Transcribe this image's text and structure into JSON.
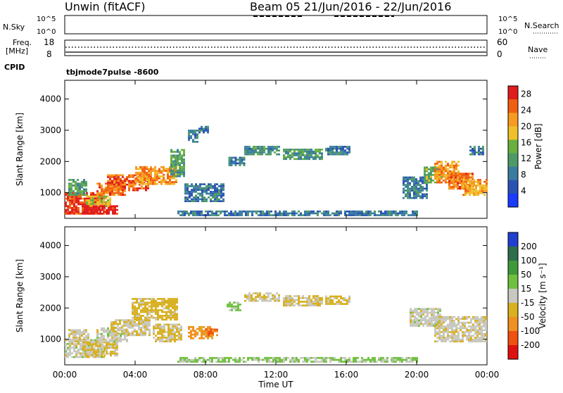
{
  "header": {
    "station": "Unwin (fitACF)",
    "beam_title": "Beam 05  21/Jun/2016 - 22/Jun/2016",
    "cpid_label": "CPID",
    "cpid_value": "tbjmode7pulse -8600"
  },
  "top_panels": {
    "nsky_label": "N.Sky",
    "nsky_ticks": [
      "10^5",
      "10^0"
    ],
    "freq_label_1": "Freq.",
    "freq_label_2": "[MHz]",
    "freq_ticks": [
      "18",
      "8"
    ],
    "nsearch_label": "N.Search",
    "nsearch_ticks": [
      "10^5",
      "10^0"
    ],
    "nave_label": "Nave",
    "nave_ticks": [
      "60",
      "0"
    ]
  },
  "chart_data": [
    {
      "type": "heatmap",
      "title": "",
      "xlabel": "Time UT",
      "ylabel": "Slant Range [km]",
      "x_ticks": [
        "00:00",
        "04:00",
        "08:00",
        "12:00",
        "16:00",
        "20:00",
        "00:00"
      ],
      "y_ticks": [
        1000,
        2000,
        3000,
        4000
      ],
      "ylim": [
        180,
        4600
      ],
      "colorbar_label": "Power [dB]",
      "colorbar_ticks": [
        4,
        8,
        12,
        16,
        20,
        24,
        28
      ],
      "colorbar_range": [
        0,
        30
      ],
      "colormap": [
        "#1a3cff",
        "#2a52b4",
        "#3a7ca0",
        "#4d9a68",
        "#6ab040",
        "#f0c02a",
        "#f79a20",
        "#f06010",
        "#e01c1c"
      ],
      "regions": [
        {
          "t": [
            0.0,
            2.2
          ],
          "r": [
            300,
            1000
          ],
          "v": 27
        },
        {
          "t": [
            0.2,
            1.2
          ],
          "r": [
            900,
            1400
          ],
          "v": 12
        },
        {
          "t": [
            1.0,
            3.0
          ],
          "r": [
            300,
            600
          ],
          "v": 29
        },
        {
          "t": [
            1.2,
            2.6
          ],
          "r": [
            550,
            900
          ],
          "v": 18
        },
        {
          "t": [
            1.8,
            3.4
          ],
          "r": [
            900,
            1300
          ],
          "v": 24
        },
        {
          "t": [
            2.4,
            4.8
          ],
          "r": [
            1050,
            1550
          ],
          "v": 25
        },
        {
          "t": [
            4.0,
            6.4
          ],
          "r": [
            1250,
            1850
          ],
          "v": 22
        },
        {
          "t": [
            6.0,
            6.8
          ],
          "r": [
            1500,
            2400
          ],
          "v": 12
        },
        {
          "t": [
            7.0,
            7.6
          ],
          "r": [
            2600,
            3000
          ],
          "v": 9
        },
        {
          "t": [
            7.6,
            8.1
          ],
          "r": [
            2900,
            3100
          ],
          "v": 8
        },
        {
          "t": [
            6.8,
            9.0
          ],
          "r": [
            700,
            1300
          ],
          "v": 8
        },
        {
          "t": [
            9.3,
            10.2
          ],
          "r": [
            1850,
            2150
          ],
          "v": 9
        },
        {
          "t": [
            10.2,
            12.2
          ],
          "r": [
            2200,
            2500
          ],
          "v": 10
        },
        {
          "t": [
            12.4,
            14.6
          ],
          "r": [
            2050,
            2400
          ],
          "v": 11
        },
        {
          "t": [
            14.8,
            16.2
          ],
          "r": [
            2200,
            2450
          ],
          "v": 9
        },
        {
          "t": [
            19.2,
            20.6
          ],
          "r": [
            800,
            1500
          ],
          "v": 9
        },
        {
          "t": [
            20.4,
            21.4
          ],
          "r": [
            1300,
            1800
          ],
          "v": 14
        },
        {
          "t": [
            21.0,
            22.4
          ],
          "r": [
            1300,
            2000
          ],
          "v": 22
        },
        {
          "t": [
            21.8,
            23.2
          ],
          "r": [
            1100,
            1600
          ],
          "v": 24
        },
        {
          "t": [
            22.6,
            24.0
          ],
          "r": [
            900,
            1400
          ],
          "v": 21
        },
        {
          "t": [
            23.0,
            23.8
          ],
          "r": [
            2200,
            2500
          ],
          "v": 8
        },
        {
          "t": [
            6.4,
            20.0
          ],
          "r": [
            250,
            420
          ],
          "v": 8
        }
      ]
    },
    {
      "type": "heatmap",
      "title": "",
      "xlabel": "Time UT",
      "ylabel": "Slant Range [km]",
      "x_ticks": [
        "00:00",
        "04:00",
        "08:00",
        "12:00",
        "16:00",
        "20:00",
        "00:00"
      ],
      "y_ticks": [
        1000,
        2000,
        3000,
        4000
      ],
      "ylim": [
        180,
        4600
      ],
      "colorbar_label": "Velocity [m s⁻¹]",
      "colorbar_ticks": [
        200,
        100,
        50,
        15,
        -15,
        -50,
        -100,
        -200
      ],
      "colorbar_range": [
        -250,
        250
      ],
      "colormap_top_to_bottom": [
        "#2040d0",
        "#2e6e4a",
        "#3f9a3a",
        "#70c040",
        "#c8c8c0",
        "#d8b020",
        "#f09020",
        "#f05010",
        "#e01010"
      ],
      "regions": [
        {
          "t": [
            0.0,
            2.2
          ],
          "r": [
            400,
            1000
          ],
          "v": 0
        },
        {
          "t": [
            0.2,
            1.4
          ],
          "r": [
            900,
            1300
          ],
          "v": -5
        },
        {
          "t": [
            1.0,
            3.0
          ],
          "r": [
            450,
            900
          ],
          "v": -20
        },
        {
          "t": [
            1.8,
            3.6
          ],
          "r": [
            900,
            1350
          ],
          "v": 0
        },
        {
          "t": [
            2.6,
            4.8
          ],
          "r": [
            1100,
            1600
          ],
          "v": -10
        },
        {
          "t": [
            3.8,
            6.4
          ],
          "r": [
            1600,
            2300
          ],
          "v": -30
        },
        {
          "t": [
            5.0,
            6.6
          ],
          "r": [
            900,
            1500
          ],
          "v": -20
        },
        {
          "t": [
            7.0,
            8.4
          ],
          "r": [
            1000,
            1400
          ],
          "v": -60
        },
        {
          "t": [
            8.0,
            8.6
          ],
          "r": [
            1100,
            1300
          ],
          "v": -100
        },
        {
          "t": [
            9.2,
            10.0
          ],
          "r": [
            1900,
            2200
          ],
          "v": 20
        },
        {
          "t": [
            10.2,
            12.2
          ],
          "r": [
            2200,
            2500
          ],
          "v": -10
        },
        {
          "t": [
            12.4,
            14.6
          ],
          "r": [
            2050,
            2400
          ],
          "v": -15
        },
        {
          "t": [
            14.8,
            16.2
          ],
          "r": [
            2100,
            2400
          ],
          "v": -20
        },
        {
          "t": [
            19.6,
            21.4
          ],
          "r": [
            1400,
            2000
          ],
          "v": 0
        },
        {
          "t": [
            21.0,
            24.0
          ],
          "r": [
            900,
            1700
          ],
          "v": -5
        },
        {
          "t": [
            6.4,
            20.0
          ],
          "r": [
            250,
            420
          ],
          "v": 20
        }
      ]
    }
  ]
}
